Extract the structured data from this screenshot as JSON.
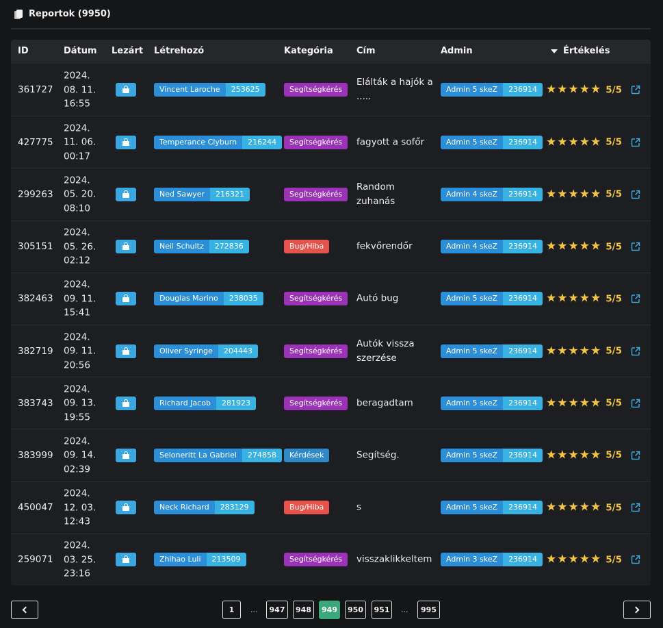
{
  "header": {
    "title": "Reportok (9950)",
    "icon": "copy-icon"
  },
  "columns": {
    "id": "ID",
    "date": "Dátum",
    "closed": "Lezárt",
    "creator": "Létrehozó",
    "category": "Kategória",
    "title": "Cím",
    "admin": "Admin",
    "rating": "Értékelés"
  },
  "colors": {
    "accent_blue": "#3aa7e0",
    "category_purple": "#9a33b5",
    "category_red": "#e5534b",
    "category_blue": "#2f89c8",
    "star": "#f4c542",
    "active_page": "#3aa87a"
  },
  "rows": [
    {
      "id": "361727",
      "date_line1": "2024.",
      "date_line2": "08. 11.",
      "date_line3": "16:55",
      "creator_name": "Vincent Laroche",
      "creator_id": "253625",
      "category": "Segítségkérés",
      "category_color": "purple",
      "title": "Elálták a hajók a .....",
      "admin_name": "Admin 5 skeZ",
      "admin_id": "236914",
      "score": "5/5"
    },
    {
      "id": "427775",
      "date_line1": "2024.",
      "date_line2": "11. 06.",
      "date_line3": "00:17",
      "creator_name": "Temperance Clyburn",
      "creator_id": "216244",
      "category": "Segítségkérés",
      "category_color": "purple",
      "title": "fagyott a sofőr",
      "admin_name": "Admin 5 skeZ",
      "admin_id": "236914",
      "score": "5/5"
    },
    {
      "id": "299263",
      "date_line1": "2024.",
      "date_line2": "05. 20.",
      "date_line3": "08:10",
      "creator_name": "Ned Sawyer",
      "creator_id": "216321",
      "category": "Segítségkérés",
      "category_color": "purple",
      "title": "Random zuhanás",
      "admin_name": "Admin 4 skeZ",
      "admin_id": "236914",
      "score": "5/5"
    },
    {
      "id": "305151",
      "date_line1": "2024.",
      "date_line2": "05. 26.",
      "date_line3": "02:12",
      "creator_name": "Neil Schultz",
      "creator_id": "272836",
      "category": "Bug/Hiba",
      "category_color": "red",
      "title": "fekvőrendőr",
      "admin_name": "Admin 4 skeZ",
      "admin_id": "236914",
      "score": "5/5"
    },
    {
      "id": "382463",
      "date_line1": "2024.",
      "date_line2": "09. 11.",
      "date_line3": "15:41",
      "creator_name": "Douglas Marino",
      "creator_id": "238035",
      "category": "Segítségkérés",
      "category_color": "purple",
      "title": "Autó bug",
      "admin_name": "Admin 5 skeZ",
      "admin_id": "236914",
      "score": "5/5"
    },
    {
      "id": "382719",
      "date_line1": "2024.",
      "date_line2": "09. 11.",
      "date_line3": "20:56",
      "creator_name": "Oliver Syringe",
      "creator_id": "204443",
      "category": "Segítségkérés",
      "category_color": "purple",
      "title": "Autók vissza szerzése",
      "admin_name": "Admin 5 skeZ",
      "admin_id": "236914",
      "score": "5/5"
    },
    {
      "id": "383743",
      "date_line1": "2024.",
      "date_line2": "09. 13.",
      "date_line3": "19:55",
      "creator_name": "Richard Jacob",
      "creator_id": "281923",
      "category": "Segítségkérés",
      "category_color": "purple",
      "title": "beragadtam",
      "admin_name": "Admin 5 skeZ",
      "admin_id": "236914",
      "score": "5/5"
    },
    {
      "id": "383999",
      "date_line1": "2024.",
      "date_line2": "09. 14.",
      "date_line3": "02:39",
      "creator_name": "Seloneritt La Gabriel",
      "creator_id": "274858",
      "category": "Kérdések",
      "category_color": "blue",
      "title": "Segítség.",
      "admin_name": "Admin 5 skeZ",
      "admin_id": "236914",
      "score": "5/5"
    },
    {
      "id": "450047",
      "date_line1": "2024.",
      "date_line2": "12. 03.",
      "date_line3": "12:43",
      "creator_name": "Neck Richard",
      "creator_id": "283129",
      "category": "Bug/Hiba",
      "category_color": "red",
      "title": "s",
      "admin_name": "Admin 5 skeZ",
      "admin_id": "236914",
      "score": "5/5"
    },
    {
      "id": "259071",
      "date_line1": "2024.",
      "date_line2": "03. 25.",
      "date_line3": "23:16",
      "creator_name": "Zhihao Luli",
      "creator_id": "213509",
      "category": "Segítségkérés",
      "category_color": "purple",
      "title": "visszaklikkeltem",
      "admin_name": "Admin 3 skeZ",
      "admin_id": "236914",
      "score": "5/5"
    }
  ],
  "pagination": {
    "pages": [
      "1",
      "947",
      "948",
      "949",
      "950",
      "951",
      "995"
    ],
    "current": "949",
    "ellipsis": "..."
  }
}
